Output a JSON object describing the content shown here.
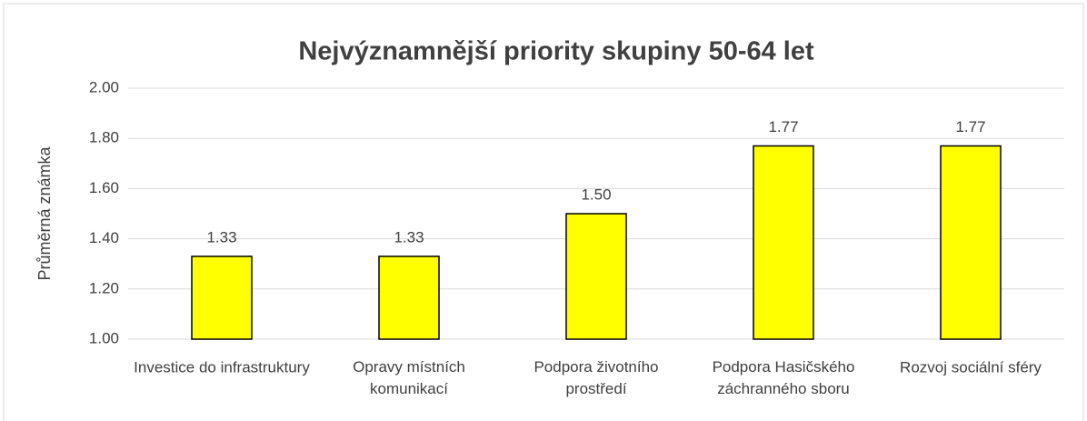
{
  "chart_data": {
    "type": "bar",
    "title": "Nejvýznamnější priority skupiny 50-64 let",
    "y_label": "Průměrná známka",
    "categories": [
      "Investice do infrastruktury",
      "Opravy místních komunikací",
      "Podpora životního prostředí",
      "Podpora Hasičského záchranného sboru",
      "Rozvoj sociální sféry"
    ],
    "values": [
      1.33,
      1.33,
      1.5,
      1.77,
      1.77
    ],
    "value_labels": [
      "1.33",
      "1.33",
      "1.50",
      "1.77",
      "1.77"
    ],
    "color": "#ffff00",
    "ylim": [
      1,
      2
    ],
    "yticks": [
      {
        "value": 1,
        "label": "1.00"
      },
      {
        "value": 1.2,
        "label": "1.20"
      },
      {
        "value": 1.4,
        "label": "1.40"
      },
      {
        "value": 1.6,
        "label": "1.60"
      },
      {
        "value": 1.8,
        "label": "1.80"
      },
      {
        "value": 2,
        "label": "2.00"
      }
    ],
    "grid": true
  }
}
